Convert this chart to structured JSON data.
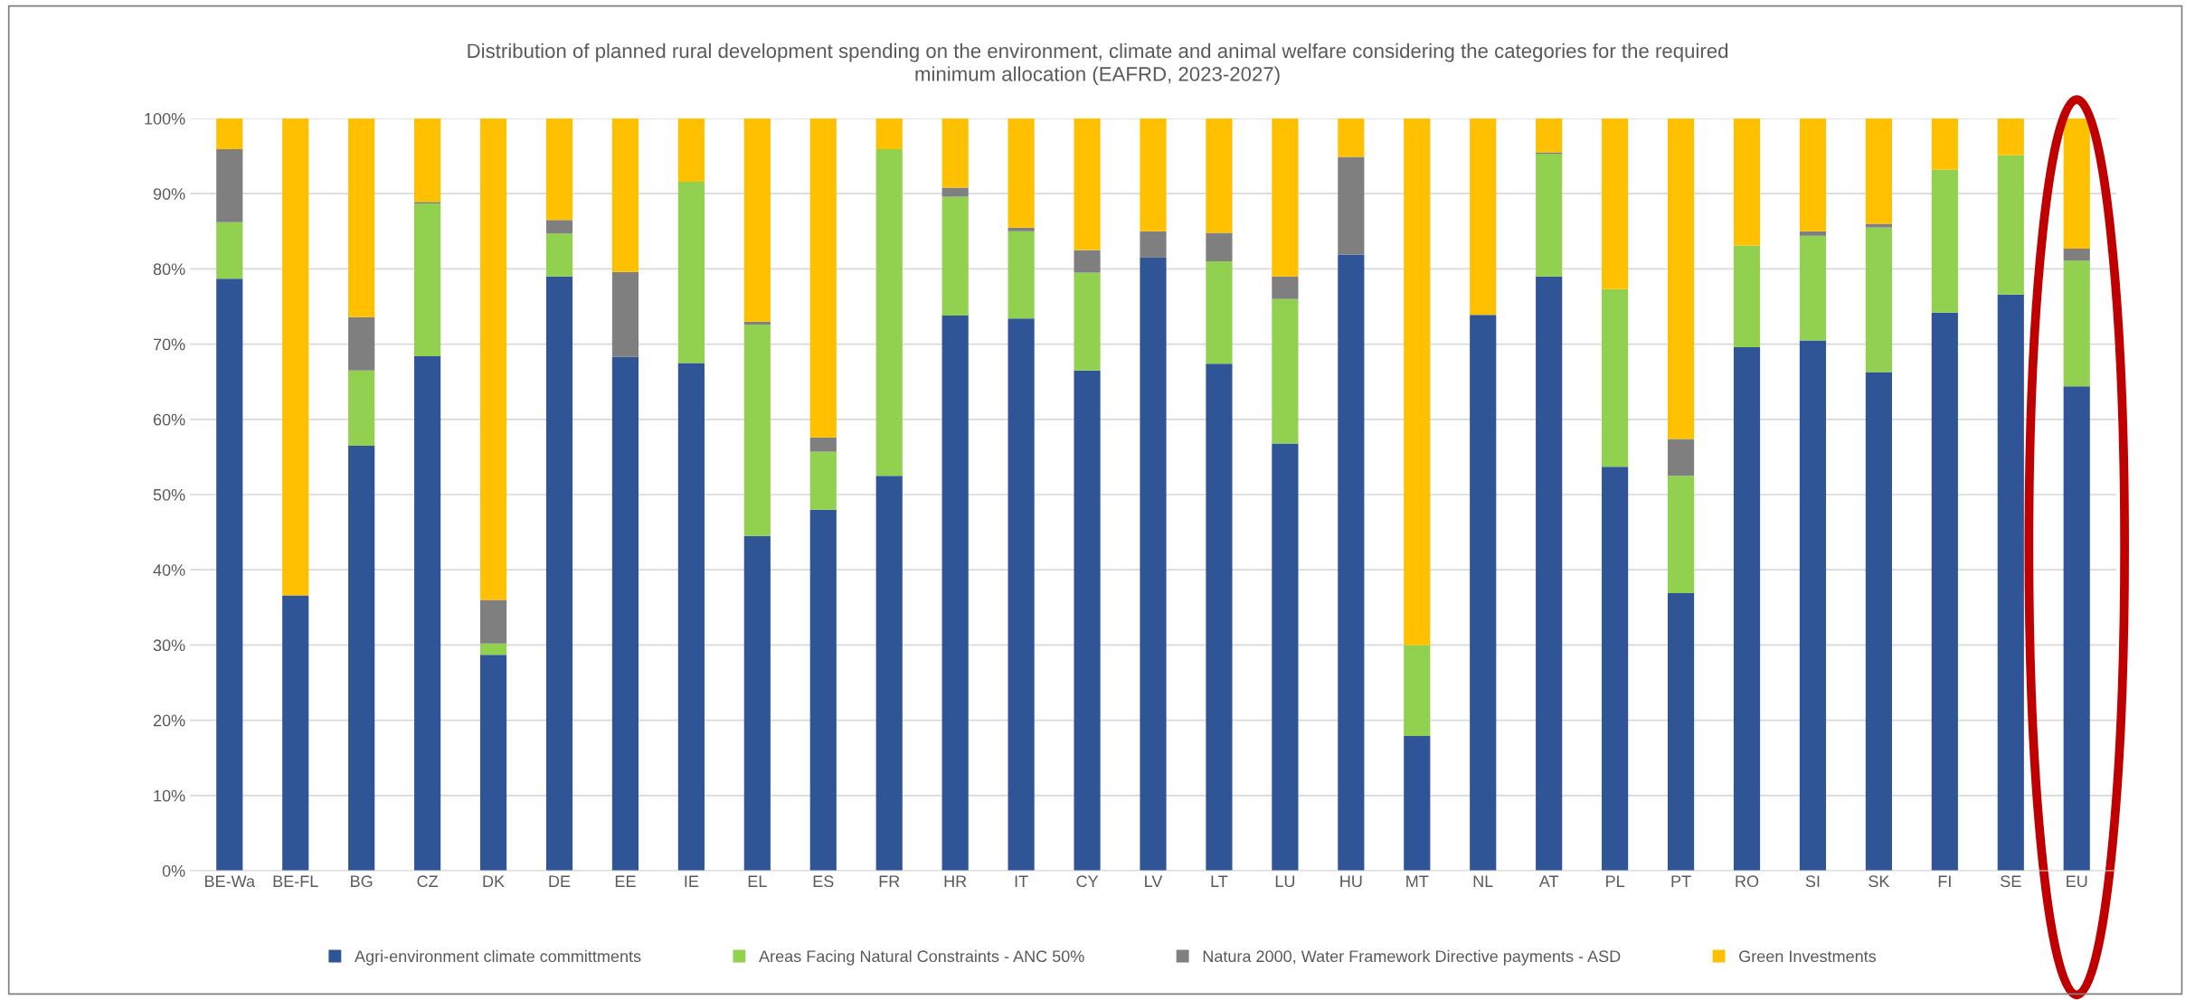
{
  "chart_data": {
    "type": "bar",
    "stacked": true,
    "title": "Distribution of planned rural development spending on the environment, climate and animal welfare considering the categories for the required minimum allocation (EAFRD, 2023-2027)",
    "categories": [
      "BE-Wa",
      "BE-FL",
      "BG",
      "CZ",
      "DK",
      "DE",
      "EE",
      "IE",
      "EL",
      "ES",
      "FR",
      "HR",
      "IT",
      "CY",
      "LV",
      "LT",
      "LU",
      "HU",
      "MT",
      "NL",
      "AT",
      "PL",
      "PT",
      "RO",
      "SI",
      "SK",
      "FI",
      "SE",
      "EU"
    ],
    "series": [
      {
        "name": "Agri-environment climate committments",
        "color": "#2f5597",
        "values": [
          78.7,
          36.6,
          56.5,
          68.4,
          28.7,
          79.0,
          68.3,
          67.5,
          44.5,
          48.0,
          52.5,
          73.8,
          73.4,
          66.5,
          81.5,
          67.4,
          56.8,
          81.9,
          17.9,
          73.9,
          79.0,
          53.7,
          36.9,
          69.6,
          70.5,
          66.3,
          74.2,
          76.6,
          64.4
        ]
      },
      {
        "name": "Areas Facing Natural Constraints - ANC 50%",
        "color": "#92d050",
        "values": [
          7.5,
          0,
          10.0,
          20.3,
          1.5,
          5.7,
          0,
          24.1,
          28.1,
          7.7,
          43.4,
          15.8,
          11.6,
          13.0,
          0,
          13.6,
          19.2,
          0,
          12.1,
          0,
          16.3,
          23.6,
          15.6,
          13.5,
          13.9,
          19.2,
          19.0,
          18.5,
          16.7
        ]
      },
      {
        "name": "Natura 2000, Water Framework Directive payments - ASD",
        "color": "#7f7f7f",
        "values": [
          9.7,
          0,
          7.1,
          0.2,
          5.8,
          1.8,
          11.3,
          0,
          0.4,
          1.9,
          0,
          1.2,
          0.5,
          3.0,
          3.5,
          3.8,
          3.0,
          13.0,
          0,
          0,
          0.2,
          0,
          4.9,
          0,
          0.6,
          0.5,
          0,
          0,
          1.6
        ]
      },
      {
        "name": "Green Investments",
        "color": "#ffc000",
        "values": [
          4.1,
          63.4,
          26.4,
          11.1,
          64.0,
          13.5,
          20.4,
          8.4,
          27.0,
          42.4,
          4.1,
          9.2,
          14.5,
          17.5,
          15.0,
          15.2,
          21.0,
          5.1,
          70.0,
          26.1,
          4.5,
          22.7,
          42.6,
          16.9,
          15.0,
          14.0,
          6.8,
          4.9,
          17.3
        ]
      }
    ],
    "ylim": [
      0,
      100
    ],
    "yticks": [
      {
        "value": 0,
        "label": "0%"
      },
      {
        "value": 10,
        "label": "10%"
      },
      {
        "value": 20,
        "label": "20%"
      },
      {
        "value": 30,
        "label": "30%"
      },
      {
        "value": 40,
        "label": "40%"
      },
      {
        "value": 50,
        "label": "50%"
      },
      {
        "value": 60,
        "label": "60%"
      },
      {
        "value": 70,
        "label": "70%"
      },
      {
        "value": 80,
        "label": "80%"
      },
      {
        "value": 90,
        "label": "90%"
      },
      {
        "value": 100,
        "label": "100%"
      }
    ],
    "grid": "y",
    "legend": "bottom"
  }
}
